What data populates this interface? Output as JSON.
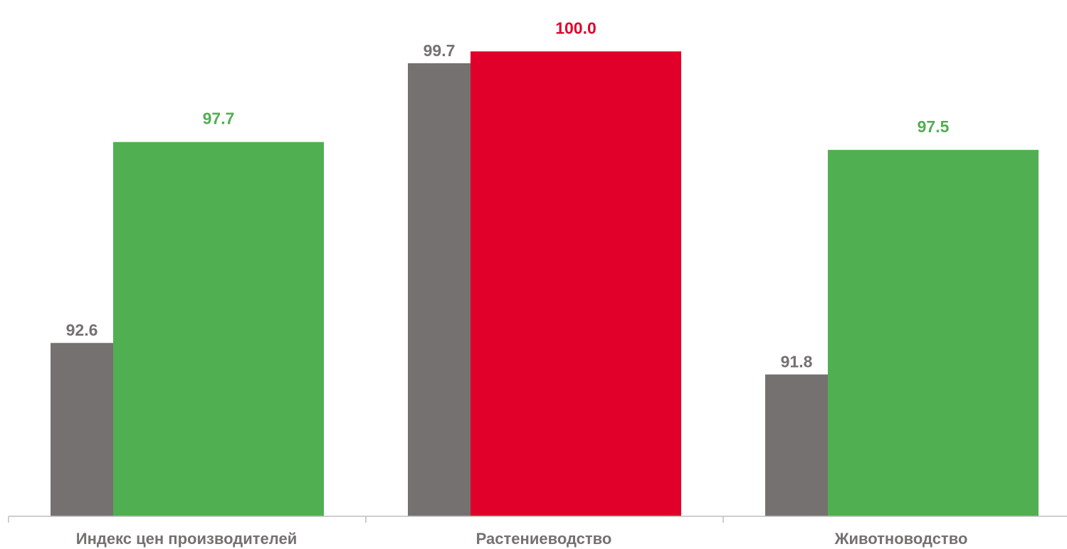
{
  "chart_data": {
    "type": "bar",
    "categories": [
      "Индекс цен производителей",
      "Растениеводство",
      "Животноводство"
    ],
    "series": [
      {
        "values": [
          92.6,
          99.7,
          91.8
        ],
        "value_labels": [
          "92.6",
          "99.7",
          "91.8"
        ],
        "color": "#767171"
      },
      {
        "values": [
          97.7,
          100.0,
          97.5
        ],
        "value_labels": [
          "97.7",
          "100.0",
          "97.5"
        ],
        "colors": [
          "#50AF50",
          "#E0002A",
          "#50AF50"
        ]
      }
    ],
    "ylim": [
      88.2,
      100.6
    ],
    "grid": false,
    "legend": "none"
  }
}
